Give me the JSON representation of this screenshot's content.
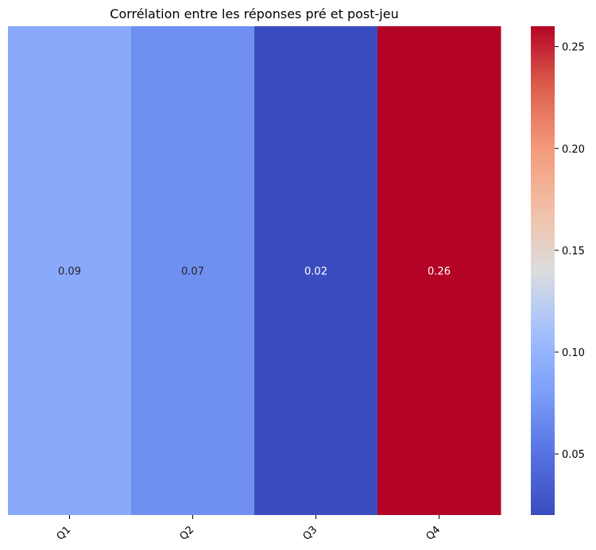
{
  "chart_data": {
    "type": "heatmap",
    "title": "Corrélation entre les réponses pré et post-jeu",
    "xlabel": "",
    "ylabel": "",
    "categories": [
      "Q1",
      "Q2",
      "Q3",
      "Q4"
    ],
    "values": [
      0.09,
      0.07,
      0.02,
      0.26
    ],
    "cell_labels": [
      "0.09",
      "0.07",
      "0.02",
      "0.26"
    ],
    "colormap": "coolwarm",
    "color_range": [
      0.02,
      0.26
    ],
    "colorbar": {
      "ticks": [
        0.05,
        0.1,
        0.15,
        0.2,
        0.25
      ],
      "tick_labels": [
        "0.05",
        "0.10",
        "0.15",
        "0.20",
        "0.25"
      ]
    },
    "grid": false,
    "legend": "colorbar-right"
  }
}
